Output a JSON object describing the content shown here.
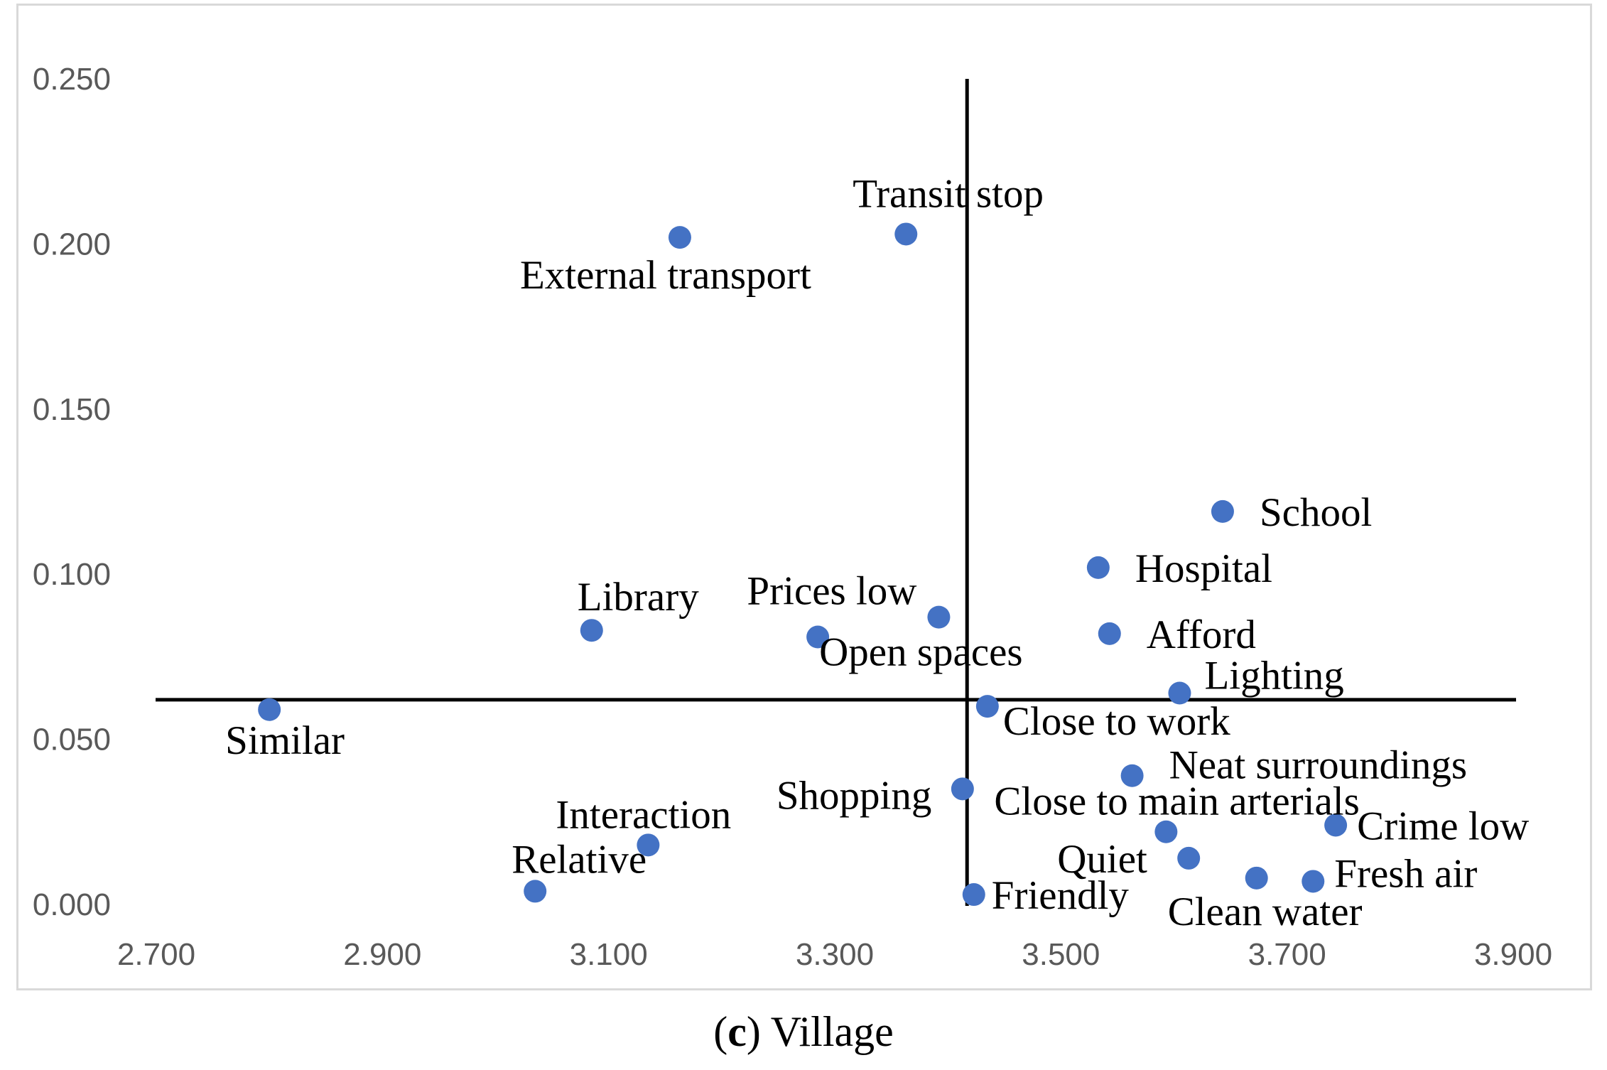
{
  "chart_data": {
    "type": "scatter",
    "title": "",
    "xlabel": "",
    "ylabel": "",
    "xlim": [
      2.7,
      3.9
    ],
    "ylim": [
      0.0,
      0.25
    ],
    "x_ticks": [
      "2.700",
      "2.900",
      "3.100",
      "3.300",
      "3.500",
      "3.700",
      "3.900"
    ],
    "y_ticks": [
      "0.000",
      "0.050",
      "0.100",
      "0.150",
      "0.200",
      "0.250"
    ],
    "grid": false,
    "legend": "none",
    "marker_color": "#4472c4",
    "reference_lines": {
      "x": 3.417,
      "y": 0.062
    },
    "points": [
      {
        "label": "Transit stop",
        "x": 3.363,
        "y": 0.203
      },
      {
        "label": "External transport",
        "x": 3.163,
        "y": 0.202
      },
      {
        "label": "School",
        "x": 3.643,
        "y": 0.119
      },
      {
        "label": "Hospital",
        "x": 3.533,
        "y": 0.102
      },
      {
        "label": "Library",
        "x": 3.085,
        "y": 0.083
      },
      {
        "label": "Prices low",
        "x": 3.392,
        "y": 0.087
      },
      {
        "label": "Open spaces",
        "x": 3.285,
        "y": 0.081
      },
      {
        "label": "Afford",
        "x": 3.543,
        "y": 0.082
      },
      {
        "label": "Lighting",
        "x": 3.605,
        "y": 0.064
      },
      {
        "label": "Similar",
        "x": 2.8,
        "y": 0.059
      },
      {
        "label": "Close to work",
        "x": 3.435,
        "y": 0.06
      },
      {
        "label": "Neat surroundings",
        "x": 3.563,
        "y": 0.039
      },
      {
        "label": "Shopping",
        "x": 3.413,
        "y": 0.035
      },
      {
        "label": "Close to main arterials",
        "x": 3.593,
        "y": 0.022
      },
      {
        "label": "Crime low",
        "x": 3.743,
        "y": 0.024
      },
      {
        "label": "Interaction",
        "x": 3.135,
        "y": 0.018
      },
      {
        "label": "Quiet",
        "x": 3.613,
        "y": 0.014
      },
      {
        "label": "Relative",
        "x": 3.035,
        "y": 0.004
      },
      {
        "label": "Friendly",
        "x": 3.423,
        "y": 0.003
      },
      {
        "label": "Clean water",
        "x": 3.673,
        "y": 0.008
      },
      {
        "label": "Fresh air",
        "x": 3.723,
        "y": 0.007
      }
    ]
  },
  "caption": {
    "letter": "c",
    "open": "(",
    "close": ")",
    "text": " Village"
  }
}
